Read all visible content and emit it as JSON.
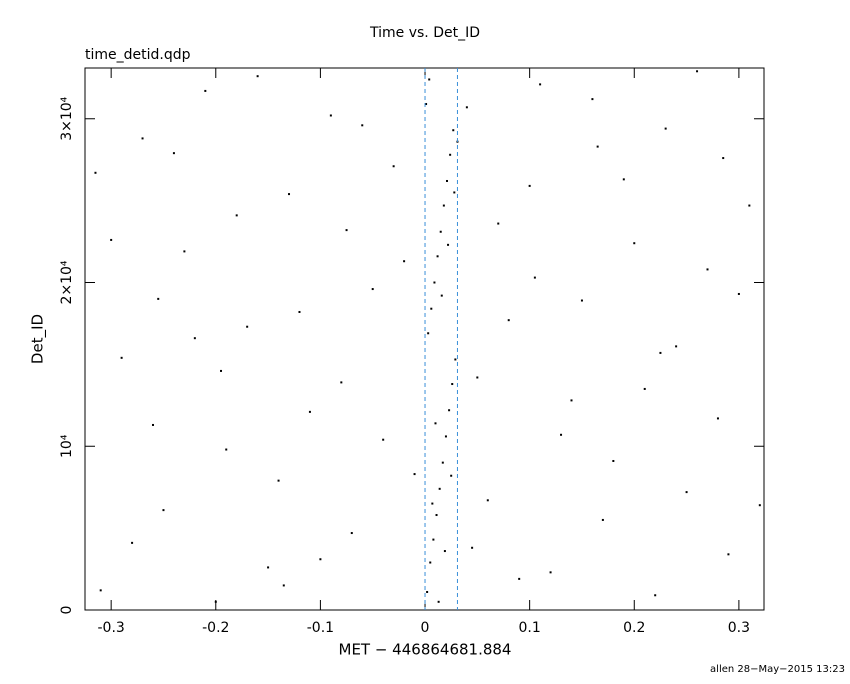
{
  "chart_data": {
    "type": "scatter",
    "title": "Time vs. Det_ID",
    "subtitle": "time_detid.qdp",
    "xlabel": "MET − 446864681.884",
    "ylabel": "Det_ID",
    "footer": "allen 28−May−2015 13:23",
    "xlim": [
      -0.325,
      0.324
    ],
    "ylim": [
      0,
      33100
    ],
    "xticks": [
      -0.3,
      -0.2,
      -0.1,
      0,
      0.1,
      0.2,
      0.3
    ],
    "yticks": [
      0,
      {
        "value": 10000,
        "label": "10⁴"
      },
      {
        "value": 20000,
        "label": "2×10⁴"
      },
      {
        "value": 30000,
        "label": "3×10⁴"
      }
    ],
    "markers": {
      "color": "#3a8fd8",
      "x": [
        0,
        0.031
      ]
    },
    "series": [
      {
        "color": "#000000",
        "x": [
          -0.31,
          -0.29,
          -0.27,
          -0.25,
          -0.23,
          -0.21,
          -0.19,
          -0.17,
          -0.15,
          -0.13,
          -0.11,
          -0.09,
          -0.07,
          -0.05,
          -0.03,
          -0.01,
          0.05,
          0.07,
          0.09,
          0.11,
          0.13,
          0.15,
          0.17,
          0.19,
          0.21,
          0.23,
          0.25,
          0.27,
          0.29,
          0.31,
          -0.3,
          -0.28,
          -0.26,
          -0.24,
          -0.22,
          -0.2,
          -0.18,
          -0.16,
          -0.14,
          -0.12,
          -0.1,
          -0.08,
          -0.06,
          -0.04,
          -0.02,
          0.04,
          0.06,
          0.08,
          0.1,
          0.12,
          0.14,
          0.16,
          0.18,
          0.2,
          0.22,
          0.24,
          0.26,
          0.28,
          0.3,
          0.32,
          -0.315,
          -0.255,
          -0.195,
          -0.135,
          -0.075,
          0.045,
          0.105,
          0.165,
          0.225,
          0.285,
          0.002,
          0.005,
          0.008,
          0.011,
          0.014,
          0.017,
          0.02,
          0.023,
          0.026,
          0.029,
          0.003,
          0.006,
          0.009,
          0.012,
          0.015,
          0.018,
          0.021,
          0.024,
          0.027,
          0.001,
          0.004,
          0.013,
          0.019,
          0.007,
          0.025,
          0.01,
          0.016,
          0.022,
          0.028,
          0.031
        ],
        "values": [
          1200,
          15400,
          28800,
          6100,
          21900,
          31700,
          9800,
          17300,
          2600,
          25400,
          12100,
          30200,
          4700,
          19600,
          27100,
          8300,
          14200,
          23600,
          1900,
          32100,
          10700,
          18900,
          5500,
          26300,
          13500,
          29400,
          7200,
          20800,
          3400,
          24700,
          22600,
          4100,
          11300,
          27900,
          16600,
          500,
          24100,
          32600,
          7900,
          18200,
          3100,
          13900,
          29600,
          10400,
          21300,
          30700,
          6700,
          17700,
          25900,
          2300,
          12800,
          31200,
          9100,
          22400,
          900,
          16100,
          32900,
          11700,
          19300,
          6400,
          26700,
          19000,
          14600,
          1500,
          23200,
          3800,
          20300,
          28300,
          15700,
          27600,
          1100,
          2900,
          4300,
          5800,
          7400,
          9000,
          10600,
          12200,
          13800,
          15300,
          16900,
          18400,
          20000,
          21600,
          23100,
          24700,
          26200,
          27800,
          29300,
          30900,
          32400,
          500,
          3600,
          6500,
          8200,
          11400,
          19200,
          22300,
          25500,
          28600
        ]
      }
    ]
  }
}
